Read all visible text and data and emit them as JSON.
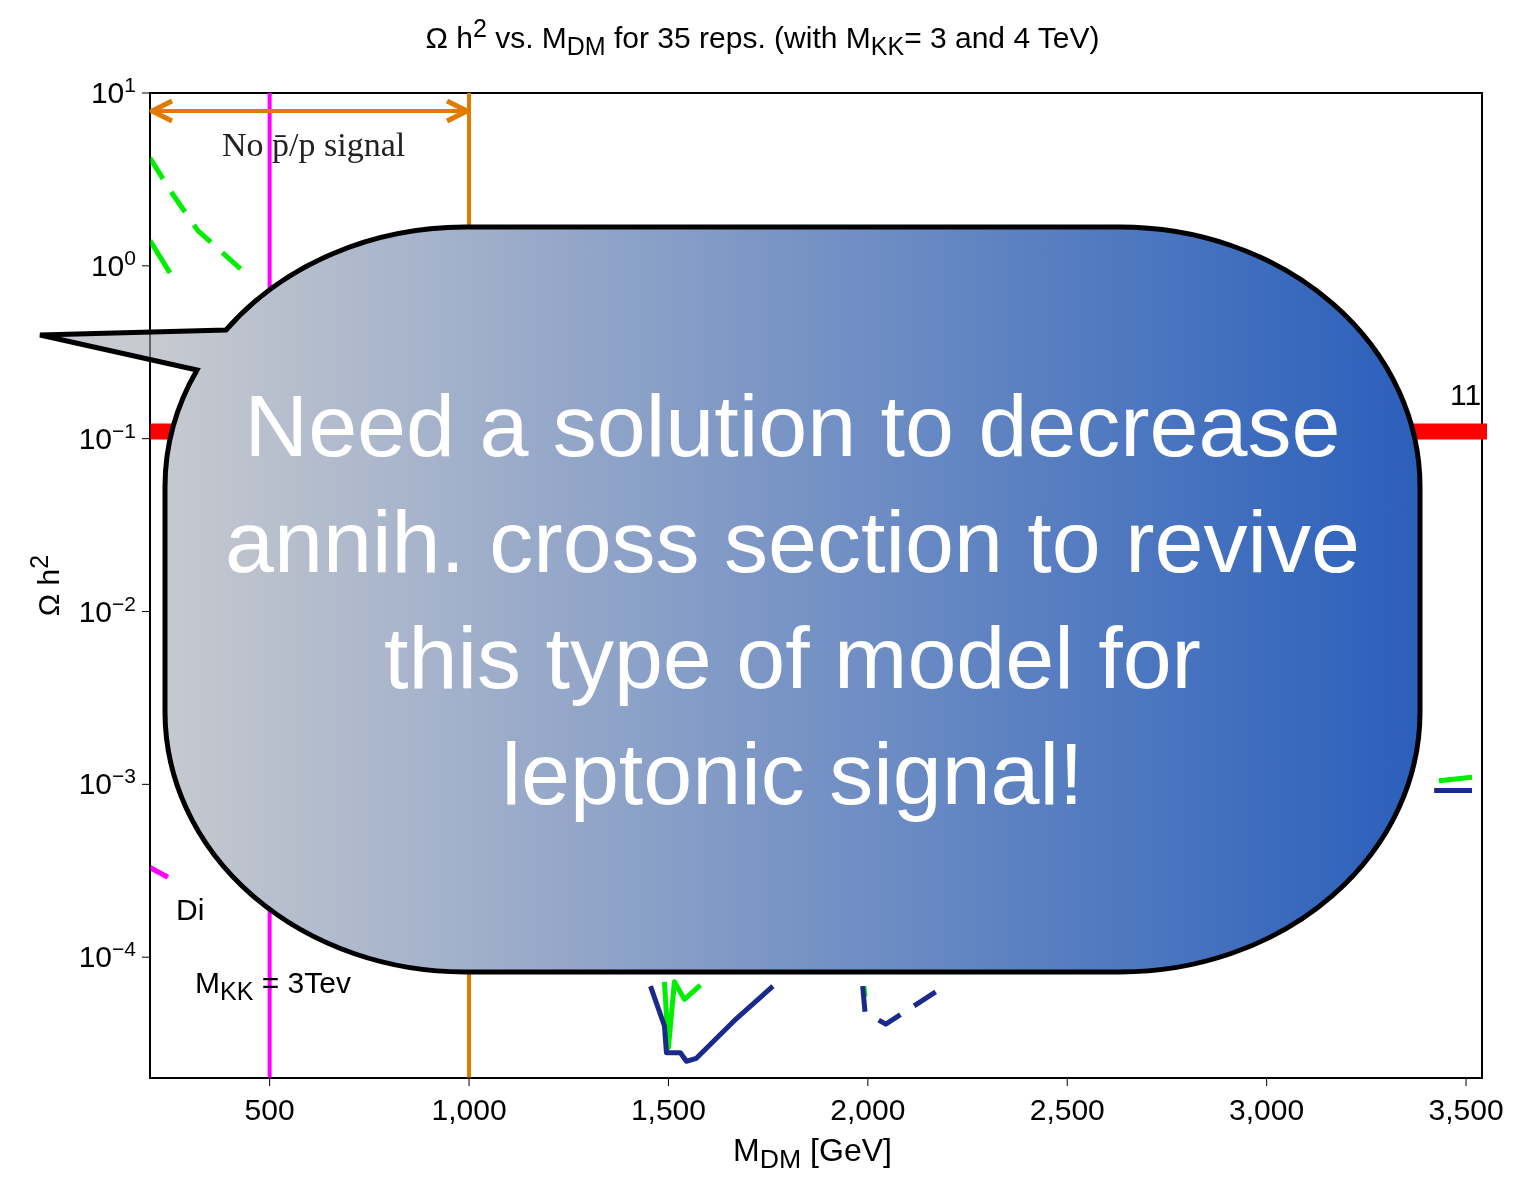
{
  "chart_data": {
    "type": "line",
    "title": "Ω h$^{2}$ vs. M$_{DM}$  for 35 reps. (with M$_{KK}$= 3  and 4 TeV)",
    "xlabel": "M$_{DM}$ [GeV]",
    "ylabel": "Ω h$^{2}$",
    "log": "y",
    "xlim": [
      200,
      3540
    ],
    "ylim": [
      2e-05,
      10
    ],
    "xticks": [
      500,
      {
        "value": 1000,
        "label": "1,000"
      },
      {
        "value": 1500,
        "label": "1,500"
      },
      {
        "value": 2000,
        "label": "2,000"
      },
      {
        "value": 2500,
        "label": "2,500"
      },
      {
        "value": 3000,
        "label": "3,000"
      },
      {
        "value": 3500,
        "label": "3,500"
      }
    ],
    "yticks": [
      {
        "value": 10,
        "label": "10$^{1}$"
      },
      {
        "value": 1,
        "label": "10$^{0}$"
      },
      {
        "value": 0.1,
        "label": "10$^{−1}$"
      },
      {
        "value": 0.01,
        "label": "10$^{−2}$"
      },
      {
        "value": 0.001,
        "label": "10$^{−3}$"
      },
      {
        "value": 0.0001,
        "label": "10$^{−4}$"
      }
    ],
    "series": [
      {
        "type": "line",
        "color": "#00ee00",
        "line_style": "dashed",
        "x": [
          200,
          252,
          320,
          427,
          1100,
          1990,
          1993,
          2100,
          3432,
          3515
        ],
        "values": [
          4.2,
          2.7,
          1.6,
          0.96,
          null,
          6.8e-05,
          5.9e-05,
          null,
          0.00105,
          0.0011
        ]
      },
      {
        "type": "line",
        "color": "#00ee00",
        "line_style": "solid",
        "x": [
          200,
          250,
          1100,
          1490,
          1500,
          1515,
          1540,
          1580
        ],
        "values": [
          1.4,
          0.91,
          null,
          7.2e-05,
          3e-05,
          7.2e-05,
          5.7e-05,
          6.9e-05
        ]
      },
      {
        "type": "line",
        "color": "#1a2a8a",
        "line_style": "solid",
        "x": [
          1455,
          1490,
          1495,
          1530,
          1545,
          1570,
          1670,
          1762
        ],
        "values": [
          6.8e-05,
          4e-05,
          2.8e-05,
          2.8e-05,
          2.5e-05,
          2.6e-05,
          4.4e-05,
          6.8e-05
        ]
      },
      {
        "type": "line",
        "color": "#1a2a8a",
        "line_style": "dashed",
        "x": [
          1987,
          1993,
          2045,
          2170,
          2500,
          3420,
          3515
        ],
        "values": [
          6.8e-05,
          4.8e-05,
          4.1e-05,
          6.3e-05,
          null,
          0.00092,
          0.00092
        ]
      },
      {
        "type": "line",
        "color": "#ff00ff",
        "line_style": "solid",
        "x": [
          200,
          245
        ],
        "values": [
          0.00033,
          0.00029
        ]
      }
    ],
    "ref_lines": [
      {
        "axis": "x",
        "value": 500,
        "color": "#ff00ff"
      },
      {
        "axis": "x",
        "value": 1000,
        "color": "#e07b00"
      },
      {
        "axis": "y",
        "value": 0.11,
        "color": "#ff0000"
      }
    ],
    "annotations": [
      "No p̄/p signal",
      "Di",
      "M$_{KK}$ = 3Tev",
      "11",
      "Need a solution to decrease annih. cross section to revive this type of model for leptonic signal!"
    ]
  }
}
